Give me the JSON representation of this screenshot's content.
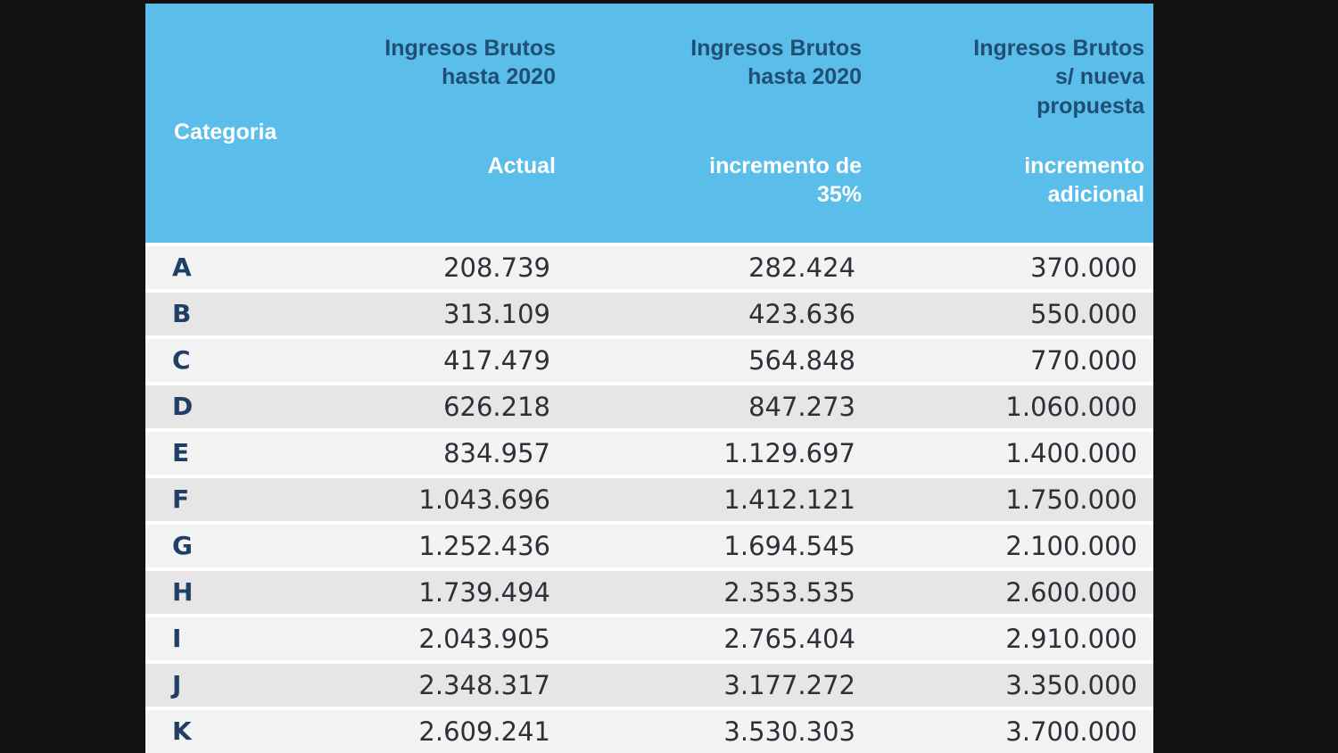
{
  "table": {
    "header": {
      "category": "Categoria",
      "columns": [
        {
          "top_lines": [
            "Ingresos Brutos",
            "hasta 2020"
          ],
          "sub_lines": [
            "Actual"
          ]
        },
        {
          "top_lines": [
            "Ingresos Brutos",
            "hasta 2020"
          ],
          "sub_lines": [
            "incremento de",
            "35%"
          ]
        },
        {
          "top_lines": [
            "Ingresos Brutos",
            "s/ nueva",
            "propuesta"
          ],
          "sub_lines": [
            "incremento",
            "adicional"
          ]
        }
      ]
    },
    "rows": [
      {
        "category": "A",
        "actual": "208.739",
        "incremento_35": "282.424",
        "nueva_propuesta": "370.000"
      },
      {
        "category": "B",
        "actual": "313.109",
        "incremento_35": "423.636",
        "nueva_propuesta": "550.000"
      },
      {
        "category": "C",
        "actual": "417.479",
        "incremento_35": "564.848",
        "nueva_propuesta": "770.000"
      },
      {
        "category": "D",
        "actual": "626.218",
        "incremento_35": "847.273",
        "nueva_propuesta": "1.060.000"
      },
      {
        "category": "E",
        "actual": "834.957",
        "incremento_35": "1.129.697",
        "nueva_propuesta": "1.400.000"
      },
      {
        "category": "F",
        "actual": "1.043.696",
        "incremento_35": "1.412.121",
        "nueva_propuesta": "1.750.000"
      },
      {
        "category": "G",
        "actual": "1.252.436",
        "incremento_35": "1.694.545",
        "nueva_propuesta": "2.100.000"
      },
      {
        "category": "H",
        "actual": "1.739.494",
        "incremento_35": "2.353.535",
        "nueva_propuesta": "2.600.000"
      },
      {
        "category": "I",
        "actual": "2.043.905",
        "incremento_35": "2.765.404",
        "nueva_propuesta": "2.910.000"
      },
      {
        "category": "J",
        "actual": "2.348.317",
        "incremento_35": "3.177.272",
        "nueva_propuesta": "3.350.000"
      },
      {
        "category": "K",
        "actual": "2.609.241",
        "incremento_35": "3.530.303",
        "nueva_propuesta": "3.700.000"
      }
    ]
  },
  "colors": {
    "header_background": "#5bbde9",
    "header_title_text": "#1f4f73",
    "header_sub_text": "#ffffff",
    "row_odd": "#f3f3f3",
    "row_even": "#e6e6e6",
    "category_text": "#1f3f66",
    "page_background": "#111111"
  }
}
